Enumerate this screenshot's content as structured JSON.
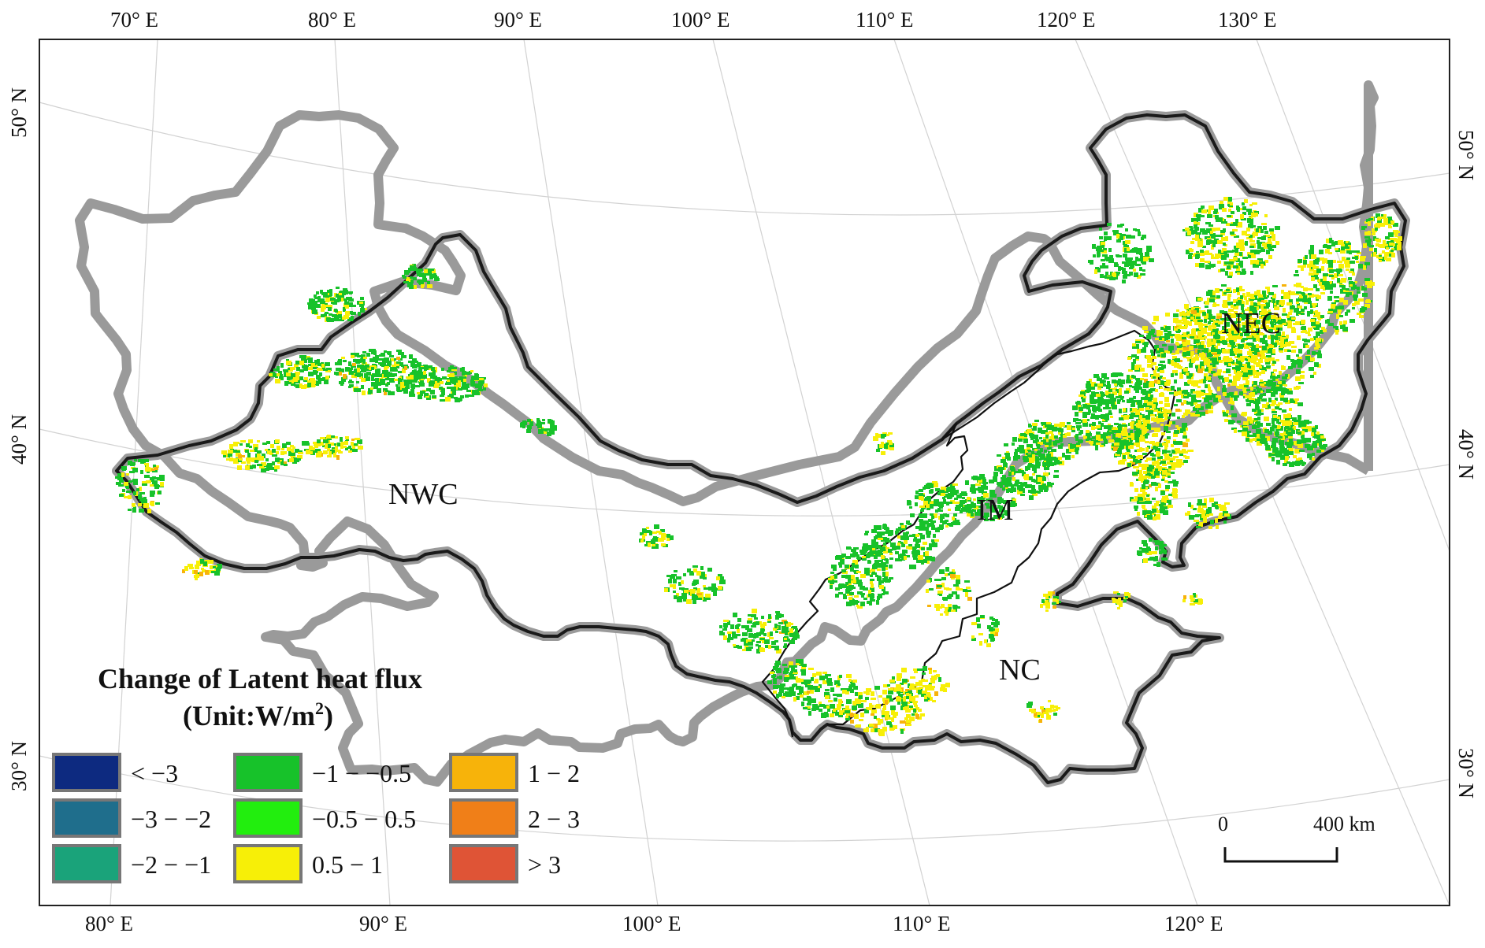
{
  "legend": {
    "title_line1": "Change of Latent heat flux",
    "title_line2_prefix": "(Unit:W/m",
    "title_line2_sup": "2",
    "title_line2_suffix": ")",
    "classes": [
      {
        "label": "< −3",
        "color": "#0d2a80"
      },
      {
        "label": "−3 − −2",
        "color": "#1f6e8c"
      },
      {
        "label": "−2 − −1",
        "color": "#1aa37a"
      },
      {
        "label": "−1 − −0.5",
        "color": "#17c22a"
      },
      {
        "label": "−0.5 − 0.5",
        "color": "#22ee0e"
      },
      {
        "label": "0.5 − 1",
        "color": "#f7ef07"
      },
      {
        "label": "1 − 2",
        "color": "#f7b30a"
      },
      {
        "label": "2 − 3",
        "color": "#f07f18"
      },
      {
        "label": "> 3",
        "color": "#df5436"
      }
    ]
  },
  "axes": {
    "top_ticks": [
      "70° E",
      "80° E",
      "90° E",
      "100° E",
      "110° E",
      "120° E",
      "130° E"
    ],
    "bottom_ticks": [
      "80° E",
      "90° E",
      "100° E",
      "110° E",
      "120° E"
    ],
    "left_ticks": [
      "50° N",
      "40° N",
      "30° N"
    ],
    "right_ticks": [
      "50° N",
      "40° N",
      "30° N"
    ]
  },
  "regions": [
    "NWC",
    "IM",
    "NEC",
    "NC"
  ],
  "scale_bar": {
    "start_label": "0",
    "end_label": "400 km"
  },
  "colors": {
    "frame": "#222222",
    "border": "#1a1a1a",
    "border_halo": "#9a9a9a",
    "graticule": "#d2d2d2"
  }
}
